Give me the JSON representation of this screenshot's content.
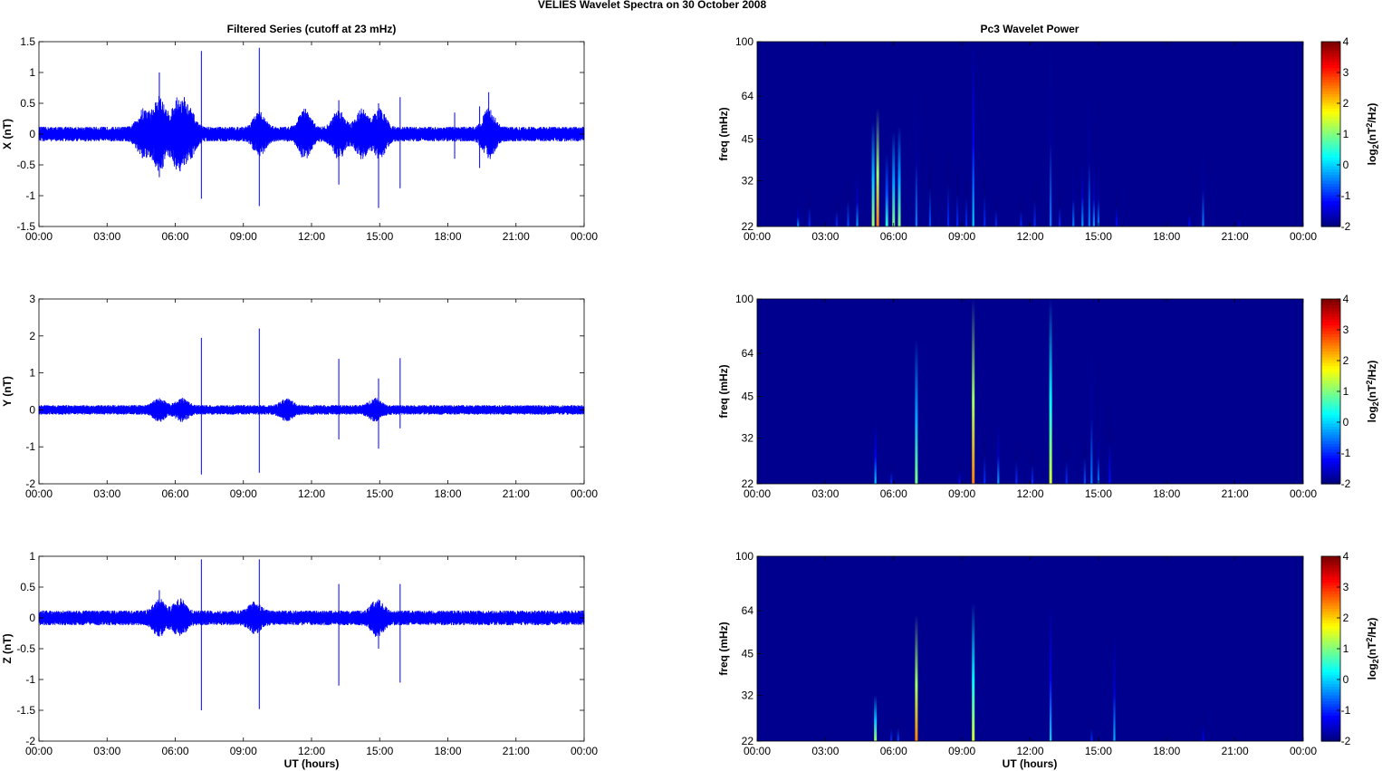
{
  "figure_title": "VELIES Wavelet Spectra on 30 October   2008",
  "left_title": "Filtered Series (cutoff at 23 mHz)",
  "right_title": "Pc3 Wavelet Power",
  "xlabel": "UT (hours)",
  "freq_label": "freq (mHz)",
  "colorbar_label": "log2(nT2/Hz)",
  "colorbar_ticks": [
    "4",
    "3",
    "2",
    "1",
    "0",
    "-1",
    "-2"
  ],
  "colorbar_range": [
    -2,
    4
  ],
  "freq_ticks": [
    "100",
    "64",
    "45",
    "32",
    "22"
  ],
  "time_ticks": [
    "00:00",
    "03:00",
    "06:00",
    "09:00",
    "12:00",
    "15:00",
    "18:00",
    "21:00",
    "00:00"
  ],
  "colors": {
    "series": "#0000ff",
    "spectrum_background": "#00008f"
  },
  "chart_data": [
    {
      "type": "line",
      "component": "X",
      "ylabel": "X (nT)",
      "ylim": [
        -1.5,
        1.5
      ],
      "yticks": [
        "1.5",
        "1",
        "0.5",
        "0",
        "-0.5",
        "-1",
        "-1.5"
      ],
      "x_range_hours": [
        0,
        24
      ],
      "noise_envelope_nT": 0.12,
      "active_bursts": [
        {
          "t": 4.6,
          "amp": 0.3
        },
        {
          "t": 5.3,
          "amp": 0.5
        },
        {
          "t": 6.1,
          "amp": 0.45
        },
        {
          "t": 6.6,
          "amp": 0.3
        },
        {
          "t": 9.7,
          "amp": 0.25
        },
        {
          "t": 11.7,
          "amp": 0.3
        },
        {
          "t": 13.2,
          "amp": 0.3
        },
        {
          "t": 14.2,
          "amp": 0.3
        },
        {
          "t": 15.0,
          "amp": 0.3
        },
        {
          "t": 19.8,
          "amp": 0.3
        }
      ],
      "spikes": [
        {
          "t": 5.3,
          "max": 1.0,
          "min": -0.7
        },
        {
          "t": 7.15,
          "max": 1.35,
          "min": -1.05
        },
        {
          "t": 9.7,
          "max": 1.4,
          "min": -1.17
        },
        {
          "t": 13.2,
          "max": 0.55,
          "min": -0.82
        },
        {
          "t": 14.95,
          "max": 0.5,
          "min": -1.2
        },
        {
          "t": 15.9,
          "max": 0.6,
          "min": -0.88
        },
        {
          "t": 18.3,
          "max": 0.35,
          "min": -0.4
        },
        {
          "t": 19.4,
          "max": 0.45,
          "min": -0.55
        },
        {
          "t": 19.8,
          "max": 0.68,
          "min": -0.3
        },
        {
          "t": 6.4,
          "max": 0.6,
          "min": -0.5
        }
      ]
    },
    {
      "type": "line",
      "component": "Y",
      "ylabel": "Y (nT)",
      "ylim": [
        -2,
        3
      ],
      "yticks": [
        "3",
        "2",
        "1",
        "0",
        "-1",
        "-2"
      ],
      "x_range_hours": [
        0,
        24
      ],
      "noise_envelope_nT": 0.13,
      "active_bursts": [
        {
          "t": 5.3,
          "amp": 0.2
        },
        {
          "t": 6.3,
          "amp": 0.2
        },
        {
          "t": 10.9,
          "amp": 0.2
        },
        {
          "t": 14.8,
          "amp": 0.2
        }
      ],
      "spikes": [
        {
          "t": 7.15,
          "max": 1.95,
          "min": -1.75
        },
        {
          "t": 9.7,
          "max": 2.2,
          "min": -1.7
        },
        {
          "t": 13.2,
          "max": 1.38,
          "min": -0.8
        },
        {
          "t": 14.95,
          "max": 0.85,
          "min": -1.05
        },
        {
          "t": 15.9,
          "max": 1.4,
          "min": -0.5
        }
      ]
    },
    {
      "type": "line",
      "component": "Z",
      "ylabel": "Z (nT)",
      "ylim": [
        -2,
        1
      ],
      "yticks": [
        "1",
        "0.5",
        "0",
        "-0.5",
        "-1",
        "-1.5",
        "-2"
      ],
      "x_range_hours": [
        0,
        24
      ],
      "noise_envelope_nT": 0.12,
      "active_bursts": [
        {
          "t": 5.3,
          "amp": 0.2
        },
        {
          "t": 6.2,
          "amp": 0.2
        },
        {
          "t": 9.5,
          "amp": 0.15
        },
        {
          "t": 14.9,
          "amp": 0.2
        }
      ],
      "spikes": [
        {
          "t": 5.3,
          "max": 0.45,
          "min": -0.3
        },
        {
          "t": 7.15,
          "max": 0.95,
          "min": -1.5
        },
        {
          "t": 9.7,
          "max": 0.95,
          "min": -1.48
        },
        {
          "t": 13.2,
          "max": 0.55,
          "min": -1.1
        },
        {
          "t": 14.95,
          "max": 0.3,
          "min": -0.5
        },
        {
          "t": 15.9,
          "max": 0.55,
          "min": -1.05
        }
      ]
    },
    {
      "type": "heatmap",
      "component": "X",
      "title": "Pc3 Wavelet Power",
      "ylabel": "freq (mHz)",
      "x_range_hours": [
        0,
        24
      ],
      "freq_range_mHz": [
        22,
        100
      ],
      "colorbar_range": [
        -2,
        4
      ],
      "background_level": -2,
      "features": [
        {
          "t": 1.8,
          "f_top": 26,
          "peak": -0.3
        },
        {
          "t": 2.3,
          "f_top": 32,
          "peak": -1.0
        },
        {
          "t": 3.5,
          "f_top": 30,
          "peak": -1.0
        },
        {
          "t": 4.0,
          "f_top": 36,
          "peak": -0.8
        },
        {
          "t": 4.4,
          "f_top": 34,
          "peak": -0.3
        },
        {
          "t": 5.1,
          "f_top": 52,
          "peak": 1.2
        },
        {
          "t": 5.3,
          "f_top": 58,
          "peak": 2.5
        },
        {
          "t": 5.7,
          "f_top": 40,
          "peak": 0.5
        },
        {
          "t": 6.0,
          "f_top": 48,
          "peak": 1.0
        },
        {
          "t": 6.25,
          "f_top": 50,
          "peak": 1.0
        },
        {
          "t": 7.0,
          "f_top": 70,
          "peak": -0.5
        },
        {
          "t": 7.6,
          "f_top": 45,
          "peak": -0.8
        },
        {
          "t": 8.4,
          "f_top": 48,
          "peak": -1.0
        },
        {
          "t": 8.8,
          "f_top": 40,
          "peak": -1.0
        },
        {
          "t": 9.2,
          "f_top": 38,
          "peak": -1.0
        },
        {
          "t": 9.5,
          "f_top": 98,
          "peak": 0.0
        },
        {
          "t": 10.0,
          "f_top": 40,
          "peak": -1.0
        },
        {
          "t": 10.5,
          "f_top": 30,
          "peak": -1.0
        },
        {
          "t": 11.6,
          "f_top": 30,
          "peak": -1.0
        },
        {
          "t": 12.2,
          "f_top": 36,
          "peak": -1.0
        },
        {
          "t": 12.9,
          "f_top": 100,
          "peak": -0.5
        },
        {
          "t": 13.3,
          "f_top": 32,
          "peak": -1.0
        },
        {
          "t": 13.9,
          "f_top": 36,
          "peak": -0.5
        },
        {
          "t": 14.3,
          "f_top": 38,
          "peak": -0.3
        },
        {
          "t": 14.6,
          "f_top": 70,
          "peak": -0.5
        },
        {
          "t": 14.8,
          "f_top": 36,
          "peak": -0.3
        },
        {
          "t": 15.0,
          "f_top": 36,
          "peak": -0.5
        },
        {
          "t": 15.8,
          "f_top": 32,
          "peak": -1.2
        },
        {
          "t": 19.0,
          "f_top": 28,
          "peak": -1.2
        },
        {
          "t": 19.6,
          "f_top": 42,
          "peak": -0.5
        },
        {
          "t": 21.2,
          "f_top": 26,
          "peak": -1.5
        }
      ]
    },
    {
      "type": "heatmap",
      "component": "Y",
      "title": "",
      "ylabel": "freq (mHz)",
      "x_range_hours": [
        0,
        24
      ],
      "freq_range_mHz": [
        22,
        100
      ],
      "colorbar_range": [
        -2,
        4
      ],
      "background_level": -2,
      "features": [
        {
          "t": 5.2,
          "f_top": 36,
          "peak": 0.0
        },
        {
          "t": 5.9,
          "f_top": 28,
          "peak": -1.0
        },
        {
          "t": 7.0,
          "f_top": 72,
          "peak": 1.0
        },
        {
          "t": 8.9,
          "f_top": 28,
          "peak": -1.2
        },
        {
          "t": 9.5,
          "f_top": 100,
          "peak": 2.5
        },
        {
          "t": 10.0,
          "f_top": 38,
          "peak": -1.0
        },
        {
          "t": 10.6,
          "f_top": 36,
          "peak": -0.3
        },
        {
          "t": 11.4,
          "f_top": 34,
          "peak": -1.0
        },
        {
          "t": 12.1,
          "f_top": 32,
          "peak": -1.0
        },
        {
          "t": 12.9,
          "f_top": 100,
          "peak": 1.5
        },
        {
          "t": 13.6,
          "f_top": 34,
          "peak": -1.0
        },
        {
          "t": 14.4,
          "f_top": 36,
          "peak": -0.8
        },
        {
          "t": 14.7,
          "f_top": 72,
          "peak": -0.5
        },
        {
          "t": 15.0,
          "f_top": 36,
          "peak": -0.5
        },
        {
          "t": 15.5,
          "f_top": 50,
          "peak": -1.2
        }
      ]
    },
    {
      "type": "heatmap",
      "component": "Z",
      "title": "",
      "ylabel": "freq (mHz)",
      "x_range_hours": [
        0,
        24
      ],
      "freq_range_mHz": [
        22,
        100
      ],
      "colorbar_range": [
        -2,
        4
      ],
      "background_level": -2,
      "features": [
        {
          "t": 5.2,
          "f_top": 32,
          "peak": 1.2
        },
        {
          "t": 5.9,
          "f_top": 28,
          "peak": -1.0
        },
        {
          "t": 6.2,
          "f_top": 28,
          "peak": -0.8
        },
        {
          "t": 7.0,
          "f_top": 62,
          "peak": 2.5
        },
        {
          "t": 9.5,
          "f_top": 68,
          "peak": 1.5
        },
        {
          "t": 12.9,
          "f_top": 68,
          "peak": 0.0
        },
        {
          "t": 14.7,
          "f_top": 28,
          "peak": -1.0
        },
        {
          "t": 15.7,
          "f_top": 52,
          "peak": -0.2
        },
        {
          "t": 19.6,
          "f_top": 30,
          "peak": -1.3
        }
      ]
    }
  ]
}
